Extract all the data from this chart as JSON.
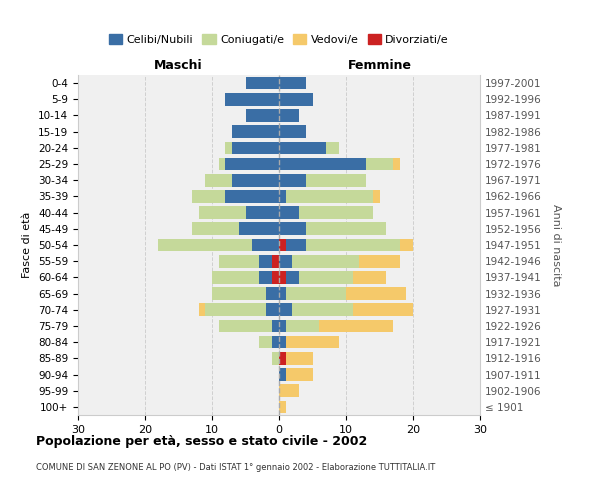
{
  "age_groups": [
    "100+",
    "95-99",
    "90-94",
    "85-89",
    "80-84",
    "75-79",
    "70-74",
    "65-69",
    "60-64",
    "55-59",
    "50-54",
    "45-49",
    "40-44",
    "35-39",
    "30-34",
    "25-29",
    "20-24",
    "15-19",
    "10-14",
    "5-9",
    "0-4"
  ],
  "birth_years": [
    "≤ 1901",
    "1902-1906",
    "1907-1911",
    "1912-1916",
    "1917-1921",
    "1922-1926",
    "1927-1931",
    "1932-1936",
    "1937-1941",
    "1942-1946",
    "1947-1951",
    "1952-1956",
    "1957-1961",
    "1962-1966",
    "1967-1971",
    "1972-1976",
    "1977-1981",
    "1982-1986",
    "1987-1991",
    "1992-1996",
    "1997-2001"
  ],
  "colors": {
    "celibi": "#3a6ea5",
    "coniugati": "#c5d99a",
    "vedovi": "#f5c96a",
    "divorziati": "#cc2222"
  },
  "males": {
    "divorziati": [
      0,
      0,
      0,
      0,
      0,
      0,
      0,
      0,
      1,
      1,
      0,
      0,
      0,
      0,
      0,
      0,
      0,
      0,
      0,
      0,
      0
    ],
    "celibi": [
      0,
      0,
      0,
      0,
      1,
      1,
      2,
      2,
      2,
      2,
      4,
      6,
      5,
      8,
      7,
      8,
      7,
      7,
      5,
      8,
      5
    ],
    "coniugati": [
      0,
      0,
      0,
      1,
      2,
      8,
      9,
      8,
      7,
      6,
      14,
      7,
      7,
      5,
      4,
      1,
      1,
      0,
      0,
      0,
      0
    ],
    "vedovi": [
      0,
      0,
      0,
      0,
      0,
      0,
      1,
      0,
      0,
      0,
      0,
      0,
      0,
      0,
      0,
      0,
      0,
      0,
      0,
      0,
      0
    ]
  },
  "females": {
    "divorziati": [
      0,
      0,
      0,
      1,
      0,
      0,
      0,
      0,
      1,
      0,
      1,
      0,
      0,
      0,
      0,
      0,
      0,
      0,
      0,
      0,
      0
    ],
    "celibi": [
      0,
      0,
      1,
      0,
      1,
      1,
      2,
      1,
      2,
      2,
      3,
      4,
      3,
      1,
      4,
      13,
      7,
      4,
      3,
      5,
      4
    ],
    "coniugati": [
      0,
      0,
      0,
      0,
      0,
      5,
      9,
      9,
      8,
      10,
      14,
      12,
      11,
      13,
      9,
      4,
      2,
      0,
      0,
      0,
      0
    ],
    "vedovi": [
      1,
      3,
      4,
      4,
      8,
      11,
      9,
      9,
      5,
      6,
      2,
      0,
      0,
      1,
      0,
      1,
      0,
      0,
      0,
      0,
      0
    ]
  },
  "xlim": 30,
  "title": "Popolazione per età, sesso e stato civile - 2002",
  "subtitle": "COMUNE DI SAN ZENONE AL PO (PV) - Dati ISTAT 1° gennaio 2002 - Elaborazione TUTTITALIA.IT",
  "ylabel_left": "Fasce di età",
  "ylabel_right": "Anni di nascita",
  "header_left": "Maschi",
  "header_right": "Femmine",
  "legend_labels": [
    "Celibi/Nubili",
    "Coniugati/e",
    "Vedovi/e",
    "Divorziati/e"
  ],
  "bg_color": "#ffffff",
  "plot_bg": "#f0f0f0",
  "grid_color": "#cccccc"
}
